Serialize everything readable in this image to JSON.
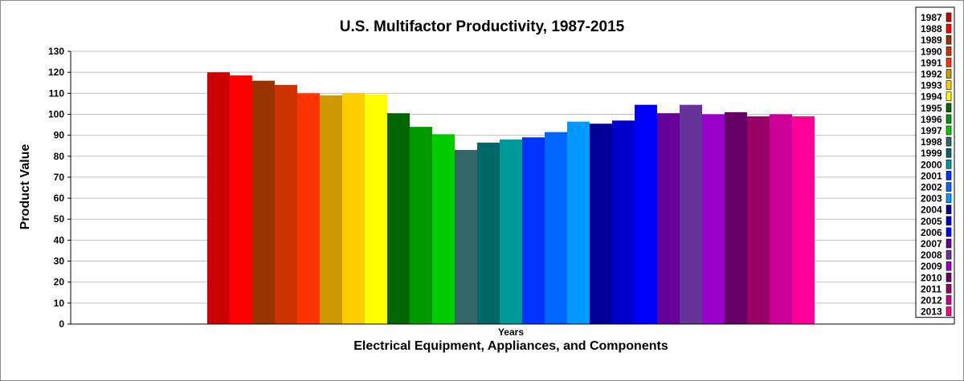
{
  "chart_data": {
    "type": "bar",
    "title": "U.S. Multifactor Productivity, 1987-2015",
    "xlabel": "Electrical Equipment, Appliances, and Components",
    "ylabel": "Product Value",
    "categories": [
      "Years"
    ],
    "ylim": [
      0,
      130
    ],
    "yticks": [
      "0",
      "10",
      "20",
      "30",
      "40",
      "50",
      "60",
      "70",
      "80",
      "90",
      "100",
      "110",
      "120",
      "130"
    ],
    "grid": true,
    "legend_position": "right",
    "series": [
      {
        "name": "1987",
        "value": 120.0,
        "color": "#cc0000"
      },
      {
        "name": "1988",
        "value": 118.5,
        "color": "#ff0000"
      },
      {
        "name": "1989",
        "value": 116.0,
        "color": "#993300"
      },
      {
        "name": "1990",
        "value": 114.0,
        "color": "#cc3300"
      },
      {
        "name": "1991",
        "value": 110.0,
        "color": "#ff3300"
      },
      {
        "name": "1992",
        "value": 109.0,
        "color": "#cc9900"
      },
      {
        "name": "1993",
        "value": 110.0,
        "color": "#ffcc00"
      },
      {
        "name": "1994",
        "value": 109.5,
        "color": "#ffff00"
      },
      {
        "name": "1995",
        "value": 100.5,
        "color": "#006600"
      },
      {
        "name": "1996",
        "value": 94.0,
        "color": "#009900"
      },
      {
        "name": "1997",
        "value": 90.5,
        "color": "#00cc00"
      },
      {
        "name": "1998",
        "value": 83.0,
        "color": "#336666"
      },
      {
        "name": "1999",
        "value": 86.5,
        "color": "#006666"
      },
      {
        "name": "2000",
        "value": 88.0,
        "color": "#009999"
      },
      {
        "name": "2001",
        "value": 89.0,
        "color": "#0033ff"
      },
      {
        "name": "2002",
        "value": 91.5,
        "color": "#0066ff"
      },
      {
        "name": "2003",
        "value": 96.5,
        "color": "#0099ff"
      },
      {
        "name": "2004",
        "value": 95.5,
        "color": "#000099"
      },
      {
        "name": "2005",
        "value": 97.0,
        "color": "#0000cc"
      },
      {
        "name": "2006",
        "value": 104.5,
        "color": "#0000ff"
      },
      {
        "name": "2007",
        "value": 100.5,
        "color": "#660099"
      },
      {
        "name": "2008",
        "value": 104.5,
        "color": "#663399"
      },
      {
        "name": "2009",
        "value": 100.0,
        "color": "#9900cc"
      },
      {
        "name": "2010",
        "value": 101.0,
        "color": "#660066"
      },
      {
        "name": "2011",
        "value": 99.0,
        "color": "#990066"
      },
      {
        "name": "2012",
        "value": 100.0,
        "color": "#cc0099"
      },
      {
        "name": "2013",
        "value": 99.0,
        "color": "#ff0099"
      }
    ]
  }
}
